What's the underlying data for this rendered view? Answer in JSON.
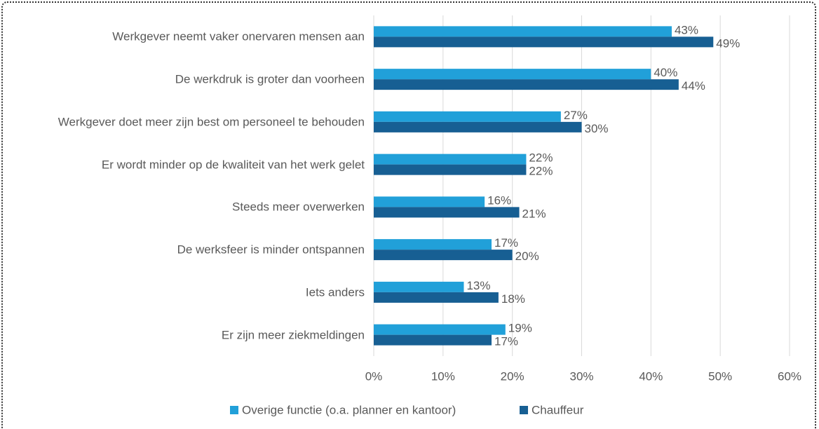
{
  "chart_data": {
    "type": "barh",
    "categories": [
      "Werkgever neemt vaker onervaren mensen aan",
      "De werkdruk is groter dan voorheen",
      "Werkgever doet meer zijn best om personeel te behouden",
      "Er wordt minder op de kwaliteit van het werk gelet",
      "Steeds meer overwerken",
      "De werksfeer is minder ontspannen",
      "Iets anders",
      "Er zijn meer ziekmeldingen"
    ],
    "series": [
      {
        "name": "Overige functie (o.a. planner en kantoor)",
        "color": "#21a0d9",
        "values": [
          43,
          40,
          27,
          22,
          16,
          17,
          13,
          19
        ],
        "value_labels": [
          "43%",
          "40%",
          "27%",
          "22%",
          "16%",
          "17%",
          "13%",
          "19%"
        ]
      },
      {
        "name": "Chauffeur",
        "color": "#175f93",
        "values": [
          49,
          44,
          30,
          22,
          21,
          20,
          18,
          17
        ],
        "value_labels": [
          "49%",
          "44%",
          "30%",
          "22%",
          "21%",
          "20%",
          "18%",
          "17%"
        ]
      }
    ],
    "xlim": [
      0,
      60
    ],
    "xticks": [
      {
        "value": 0,
        "label": "0%"
      },
      {
        "value": 10,
        "label": "10%"
      },
      {
        "value": 20,
        "label": "20%"
      },
      {
        "value": 30,
        "label": "30%"
      },
      {
        "value": 40,
        "label": "40%"
      },
      {
        "value": 50,
        "label": "50%"
      },
      {
        "value": 60,
        "label": "60%"
      }
    ],
    "grid": true,
    "legend": "bottom"
  }
}
